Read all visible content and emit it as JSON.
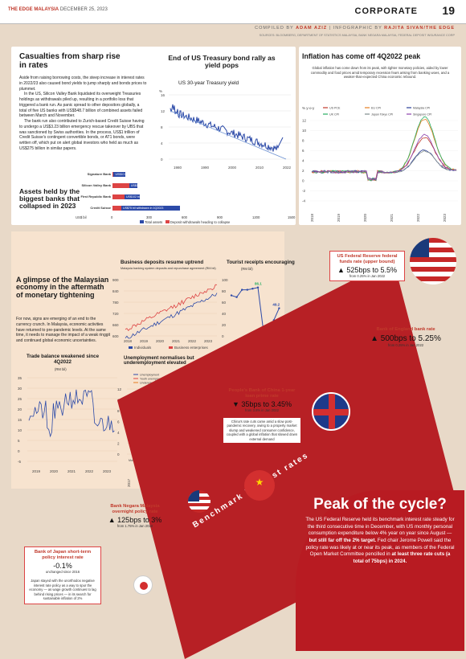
{
  "header": {
    "logo": "THE EDGE MALAYSIA",
    "date": "DECEMBER 25, 2023",
    "section": "CORPORATE",
    "page": "19"
  },
  "credit": {
    "compiled": "COMPILED BY",
    "compiled_name": "ADAM AZIZ",
    "info": "INFOGRAPHIC BY",
    "info_name": "RAJITA SIVAN/THE EDGE"
  },
  "sources": "SOURCES: BLOOMBERG, DEPARTMENT OF STATISTICS MALAYSIA, BANK NEGARA MALAYSIA, FEDERAL DEPOSIT INSURANCE CORP",
  "casualties": {
    "title": "Casualties from sharp rise in rates",
    "p1": "Aside from raising borrowing costs, the steep increase in interest rates in 2022/23 also caused bond yields to jump sharply and bonds prices to plummet.",
    "p2": "In the US, Silicon Valley Bank liquidated its overweight Treasuries holdings as withdrawals piled up, resulting in a portfolio loss that triggered a bank run. As panic spread to other depositors globally, a total of five US banks with US$548.7 billion of combined assets failed between March and November.",
    "p3": "The bank run also contributed to Zurich-based Credit Suisse having to undergo a US$3.23 billion emergency rescue takeover by UBS that was sanctioned by Swiss authorities. In the process, US$1 trillion of Credit Suisse's contingent convertible bonds, or AT1 bonds, were written off, which put on alert global investors who held as much as US$275 billion in similar papers."
  },
  "treasury": {
    "title": "End of US Treasury bond rally as yield pops",
    "subtitle": "US 30-year Treasury yield",
    "unit": "%",
    "xticks": [
      "1980",
      "1990",
      "2000",
      "2010",
      "2022"
    ],
    "yticks": [
      "16",
      "12",
      "8",
      "4",
      "0"
    ]
  },
  "banks": {
    "title": "Assets held by the biggest banks that collapsed in 2023",
    "unit": "US$ bil",
    "rows": [
      {
        "name": "Signature Bank",
        "note": "US$10 bil withdrawn a day after Silicon Valley Bank collapse",
        "total": 110,
        "dep": 10
      },
      {
        "name": "Silicon Valley Bank",
        "note": "US$142 bil withdrawn a day after announcing US$1.8 bil fundraising",
        "total": 209,
        "dep": 142
      },
      {
        "name": "First Republic Bank",
        "note": "US$102 bil withdrawn in 4Q2022",
        "total": 229,
        "dep": 102
      },
      {
        "name": "Credit Suisse",
        "note": "US$75 bil withdrawn in 1Q2023",
        "total": 575,
        "dep": 75
      }
    ],
    "xticks": [
      "0",
      "300",
      "600",
      "900",
      "1200",
      "1500"
    ],
    "legend_total": "Total assets",
    "legend_dep": "Deposit withdrawals heading to collapse"
  },
  "inflation": {
    "title": "Inflation has come off 4Q2022 peak",
    "desc": "Global inflation has come down from its peak, with tighter monetary policies, aided by lower commodity and food prices amid temporary recession fears arising from banking woes, and a weaker-than-expected China economic rebound.",
    "unit": "% y-o-y",
    "legend": [
      "US PCE",
      "EU CPI",
      "Malaysia CPI",
      "UK CPI",
      "Japan Tokyo CPI",
      "Singapore CPI"
    ],
    "yticks": [
      "12",
      "10",
      "8",
      "6",
      "4",
      "2",
      "0",
      "-2",
      "-4"
    ],
    "xticks": [
      "2018",
      "2019",
      "2020",
      "2021",
      "2022",
      "2023"
    ],
    "colors": [
      "#c0392b",
      "#e67e22",
      "#2c3e99",
      "#27ae60",
      "#7f8c8d",
      "#8e44ad"
    ]
  },
  "glimpse": {
    "title": "A glimpse of the Malaysian economy in the aftermath of monetary tightening",
    "text": "For now, signs are emerging of an end to the currency crunch. In Malaysia, economic activities have returned to pre-pandemic levels. At the same time, it needs to manage the impact of a weak ringgit and continued global economic uncertainties."
  },
  "deposits": {
    "title": "Business deposits resume uptrend",
    "subtitle": "Malaysia banking system deposits and repurchase agreement (RM bil)",
    "yticks": [
      "900",
      "840",
      "780",
      "720",
      "660",
      "600"
    ],
    "xticks": [
      "2018",
      "2019",
      "2020",
      "2021",
      "2022",
      "2023"
    ],
    "legend": [
      "Individuals",
      "Business enterprises"
    ]
  },
  "tourist": {
    "title": "Tourist receipts encouraging",
    "unit": "(RM bil)",
    "yticks": [
      "100",
      "80",
      "60",
      "40",
      "20",
      "0"
    ],
    "xticks": [
      "2014",
      "2015",
      "2016",
      "2017",
      "2018",
      "2019",
      "2020",
      "2021",
      "2022",
      "9M2023"
    ],
    "labels": [
      "86.1",
      "0.24",
      "49.2"
    ]
  },
  "trade": {
    "title": "Trade balance weakened since 4Q2022",
    "unit": "(RM bil)",
    "yticks": [
      "35",
      "30",
      "25",
      "20",
      "15",
      "10",
      "5",
      "0",
      "-5"
    ],
    "xticks": [
      "2019",
      "2020",
      "2021",
      "2022",
      "2023"
    ]
  },
  "unemp": {
    "title": "Unemployment normalises but underemployment elevated",
    "unit": "(%)",
    "legend": [
      "Unemployment",
      "Youth unemployment (aged 15 to 30)",
      "Underemployed (skills-related)"
    ],
    "yticks": [
      "12",
      "10",
      "8",
      "6",
      "4",
      "2",
      "0"
    ],
    "xticks": [
      "2017",
      "2018",
      "2019",
      "2020",
      "2021",
      "2022",
      "2023"
    ],
    "note": "MoF 2024 unemployment forecast: 3.4%"
  },
  "fed": {
    "title": "US Federal Reserve federal funds rate (upper bound)",
    "val": "▲ 525bps to 5.5%",
    "sub": "from 0.25% in Jan 2022"
  },
  "boe": {
    "title": "Bank of England bank rate",
    "val": "▲ 500bps to 5.25%",
    "sub": "from 0.25% in Jan 2022"
  },
  "pboc": {
    "title": "People's Bank of China 1-year loan prime rate",
    "val": "▼ 35bps to 3.45%",
    "sub": "from 3.8% in Jan 2022",
    "desc": "China's rate cuts came amid a slow post-pandemic recovery, owing to a property market slump and weakened consumer confidence, coupled with a global inflation that slowed down external demand"
  },
  "bnm": {
    "title": "Bank Negara Malaysia overnight policy rate",
    "val": "▲ 125bps to 3%",
    "sub": "from 1.75% in Jan 2022"
  },
  "boj": {
    "title": "Bank of Japan short-term policy interest rate",
    "val": "-0.1%",
    "sub": "unchanged since 2016",
    "desc": "Japan stayed with the unorthodox negative interest rate policy as a way to spur the economy — as wage growth continues to lag behind rising prices — in its search for sustainable inflation of 2%"
  },
  "road_label": "Benchmark interest rates",
  "peak": {
    "title": "Peak of the cycle?",
    "p": "The US Federal Reserve held its benchmark interest rate steady for the third consecutive time in December, with US monthly personal consumption expenditure below 4% year on year since August —",
    "bold1": "but still far off the 2% target.",
    "p2": "Fed chair Jerome Powell said the policy rate was likely at or near its peak, as members of the Federal Open Market Committee pencilled in",
    "bold2": "at least three rate cuts (a total of 75bps) in 2024."
  }
}
